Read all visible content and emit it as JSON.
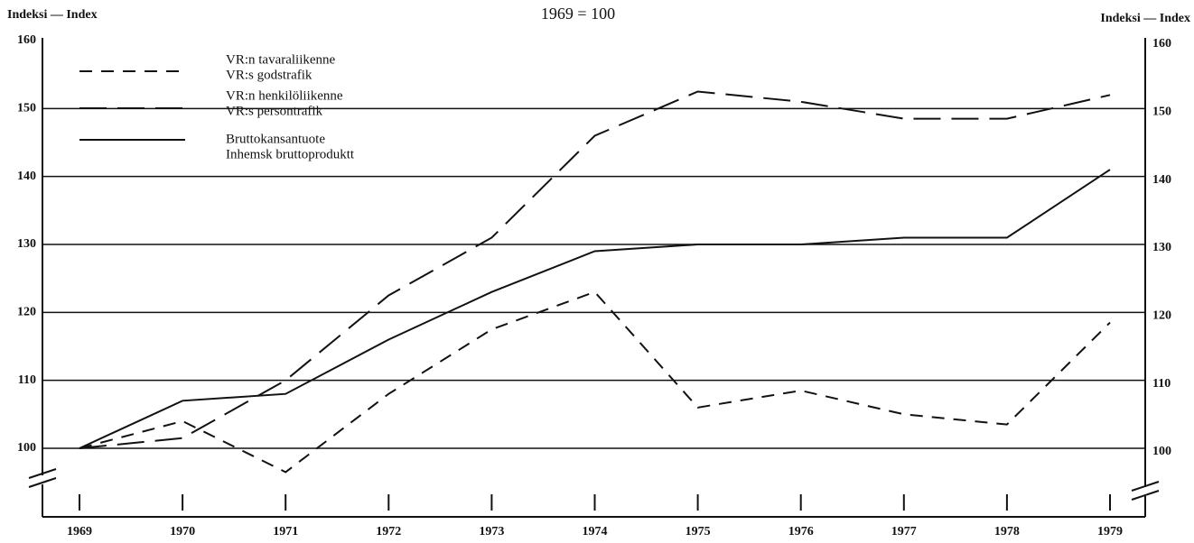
{
  "chart_data": {
    "type": "line",
    "title": "1969 = 100",
    "y_label": "Indeksi — Index",
    "y2_label": "Indeksi — Index",
    "categories": [
      "1969",
      "1970",
      "1971",
      "1972",
      "1973",
      "1974",
      "1975",
      "1976",
      "1977",
      "1978",
      "1979"
    ],
    "series": [
      {
        "name": "VR:n tavaraliikenne",
        "name_sv": "VR:s godstrafik",
        "color": "#111",
        "dash": "14 10",
        "values": [
          100,
          104,
          96.5,
          108,
          117.5,
          123,
          106,
          108.5,
          105,
          103.5,
          118.5
        ]
      },
      {
        "name": "VR:n henkilöliikenne",
        "name_sv": "VR:s persontrafik",
        "color": "#111",
        "dash": "30 12",
        "values": [
          100,
          101.5,
          110,
          122.5,
          131,
          146,
          152.5,
          151,
          148.5,
          148.5,
          152
        ]
      },
      {
        "name": "Bruttokansantuote",
        "name_sv": "Inhemsk bruttoproduktt",
        "color": "#111",
        "dash": "none",
        "values": [
          100,
          107,
          108,
          116,
          123,
          129,
          130,
          130,
          131,
          131,
          141
        ]
      }
    ],
    "ylim": [
      100,
      160
    ],
    "yticks": [
      100,
      110,
      120,
      130,
      140,
      150,
      160
    ],
    "y2lim": [
      100,
      160
    ],
    "y2ticks": [
      100,
      110,
      120,
      130,
      140,
      150,
      160
    ],
    "grid": true
  }
}
